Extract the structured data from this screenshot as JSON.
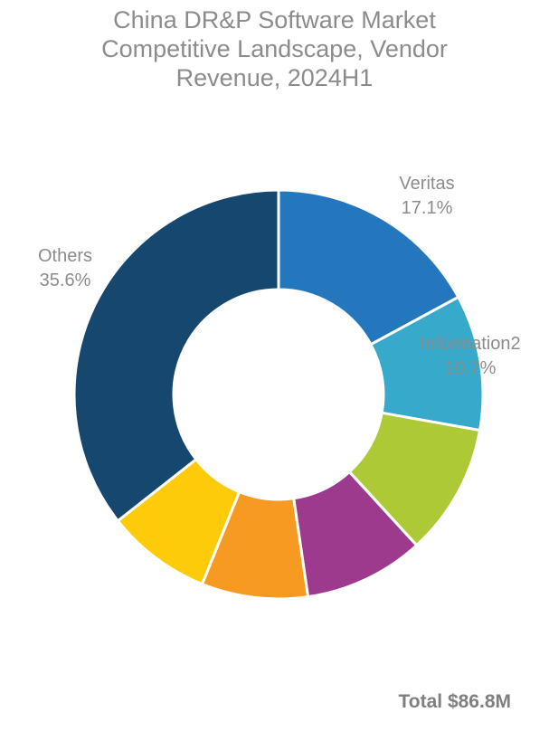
{
  "chart_data": {
    "type": "pie",
    "variant": "donut",
    "title_lines": [
      "China DR&P Software Market",
      "Competitive Landscape, Vendor",
      "Revenue, 2024H1"
    ],
    "slices": [
      {
        "name": "Veritas",
        "value": 17.1,
        "label": "17.1%",
        "color": "#2477BD",
        "show_label": true
      },
      {
        "name": "Information2",
        "value": 10.7,
        "label": "10.7%",
        "color": "#37AACB",
        "show_label": true
      },
      {
        "name": "",
        "value": 10.4,
        "label": "",
        "color": "#ADC935",
        "show_label": false
      },
      {
        "name": "",
        "value": 9.5,
        "label": "",
        "color": "#9E3A8E",
        "show_label": false
      },
      {
        "name": "",
        "value": 8.4,
        "label": "",
        "color": "#F79A22",
        "show_label": false
      },
      {
        "name": "",
        "value": 8.3,
        "label": "",
        "color": "#FDCB0A",
        "show_label": false
      },
      {
        "name": "Others",
        "value": 35.6,
        "label": "35.6%",
        "color": "#16486F",
        "show_label": true
      }
    ],
    "start_angle": "12 o'clock",
    "direction": "clockwise",
    "legend": "none",
    "footnote": "Total $86.8M"
  }
}
